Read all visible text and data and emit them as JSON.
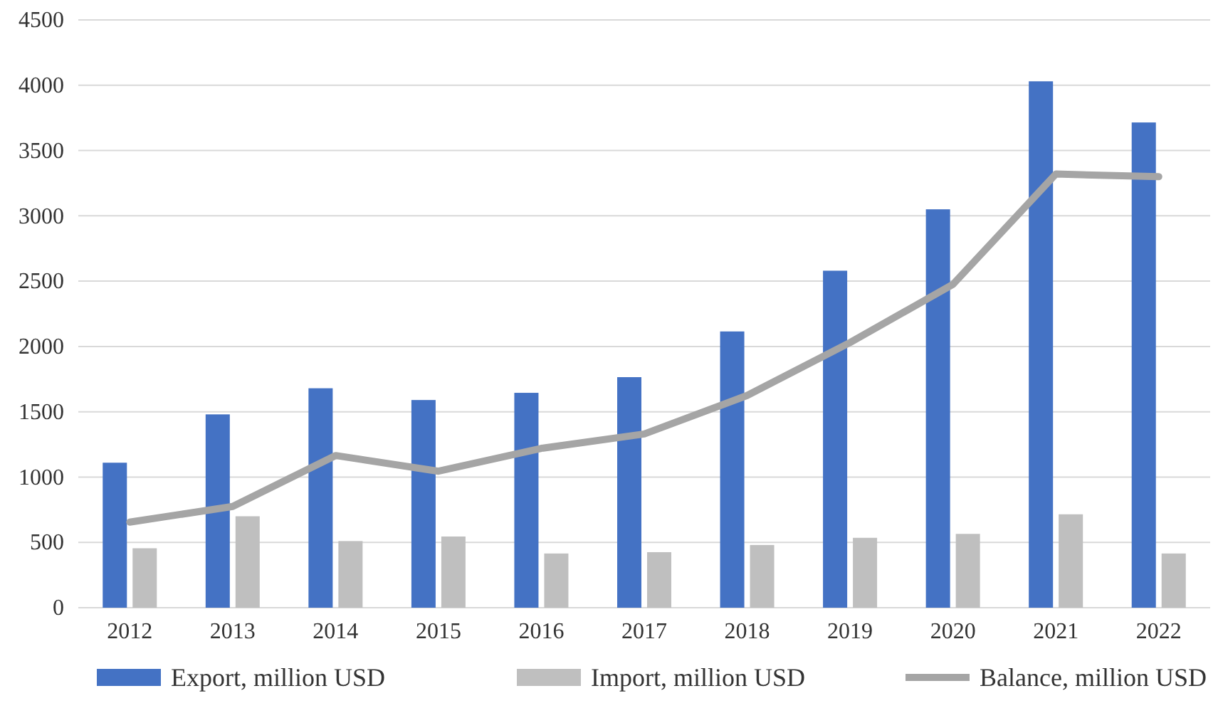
{
  "chart_data": {
    "type": "bar",
    "categories": [
      "2012",
      "2013",
      "2014",
      "2015",
      "2016",
      "2017",
      "2018",
      "2019",
      "2020",
      "2021",
      "2022"
    ],
    "series": [
      {
        "name": "Export, million USD",
        "color": "#4472c4",
        "values": [
          1110,
          1480,
          1680,
          1590,
          1645,
          1765,
          2115,
          2580,
          3050,
          4030,
          3715
        ]
      },
      {
        "name": "Import, million USD",
        "color": "#bfbfbf",
        "values": [
          455,
          700,
          510,
          545,
          415,
          425,
          480,
          535,
          565,
          715,
          415
        ]
      },
      {
        "name": "Balance, million USD",
        "color": "#a5a5a5",
        "type": "line",
        "values": [
          655,
          775,
          1165,
          1045,
          1220,
          1330,
          1625,
          2030,
          2475,
          3320,
          3300
        ]
      }
    ],
    "ylim": [
      0,
      4500
    ],
    "yticks": [
      0,
      500,
      1000,
      1500,
      2000,
      2500,
      3000,
      3500,
      4000,
      4500
    ],
    "grid": "y",
    "legend": "bottom",
    "marker": "none"
  }
}
